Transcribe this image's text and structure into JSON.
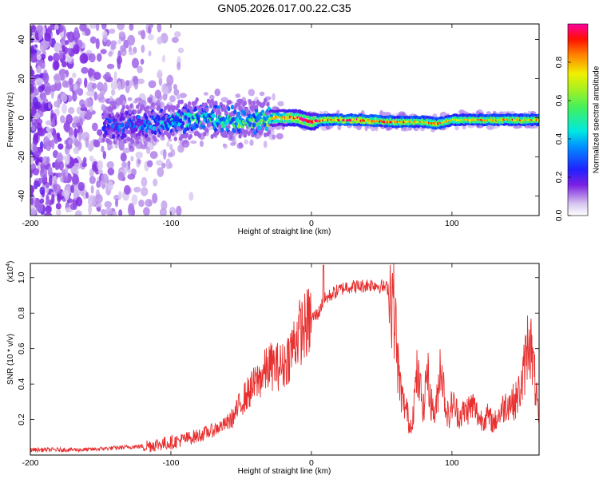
{
  "title": "GN05.2026.017.00.22.C35",
  "chart_data": [
    {
      "type": "heatmap",
      "title": "GN05.2026.017.00.22.C35",
      "xlabel": "Height of straight line (km)",
      "ylabel": "Frequency (Hz)",
      "xlim": [
        -200,
        162
      ],
      "ylim": [
        -50,
        48
      ],
      "x_ticks": [
        -200,
        -100,
        0,
        100
      ],
      "x_tick_labels": [
        "-200",
        "-100",
        "0",
        "100"
      ],
      "y_ticks": [
        -40,
        -20,
        0,
        20,
        40
      ],
      "y_tick_labels": [
        "-40",
        "-20",
        "0",
        "20",
        "40"
      ],
      "colorbar": {
        "label": "Normalized spectral amplitude",
        "range": [
          0,
          1
        ],
        "ticks": [
          0.0,
          0.2,
          0.4,
          0.6,
          0.8
        ],
        "tick_labels": [
          "0.0",
          "0.2",
          "0.4",
          "0.6",
          "0.8"
        ],
        "colormap": "purple-blue-cyan-green-yellow-red-magenta"
      },
      "ridge": {
        "description_values": "dominant frequency vs height",
        "x": [
          -145,
          -120,
          -100,
          -80,
          -60,
          -40,
          -25,
          -10,
          0,
          10,
          30,
          60,
          80,
          90,
          100,
          110,
          130,
          162
        ],
        "frequency": [
          -4,
          -3,
          -2,
          0,
          -1,
          -1,
          0,
          0,
          -2,
          -1,
          -1,
          -2,
          -2,
          -3,
          -1,
          -1,
          -1,
          -1
        ],
        "amplitude": [
          0.3,
          0.35,
          0.45,
          0.5,
          0.55,
          0.55,
          0.75,
          0.95,
          0.9,
          0.85,
          0.9,
          0.85,
          0.8,
          0.9,
          0.7,
          0.75,
          0.85,
          0.8
        ]
      },
      "noise_region_x": [
        -200,
        -110
      ]
    },
    {
      "type": "line",
      "xlabel": "Height of straight line (km)",
      "ylabel": "SNR (10 * v/v)",
      "y_multiplier_label": "(x10",
      "y_multiplier_exp": "4",
      "y_multiplier_close": ")",
      "xlim": [
        -200,
        162
      ],
      "ylim": [
        0,
        1.08
      ],
      "x_ticks": [
        -200,
        -100,
        0,
        100
      ],
      "x_tick_labels": [
        "-200",
        "-100",
        "0",
        "100"
      ],
      "y_ticks": [
        0.2,
        0.4,
        0.6,
        0.8,
        1.0
      ],
      "y_tick_labels": [
        "0.2",
        "0.4",
        "0.6",
        "0.8",
        "1.0"
      ],
      "series": [
        {
          "name": "SNR",
          "color": "#e83030",
          "x": [
            -200,
            -180,
            -160,
            -140,
            -120,
            -110,
            -100,
            -90,
            -80,
            -70,
            -60,
            -55,
            -50,
            -45,
            -40,
            -35,
            -30,
            -25,
            -20,
            -15,
            -10,
            -5,
            0,
            5,
            8,
            10,
            15,
            20,
            25,
            30,
            35,
            40,
            45,
            50,
            55,
            58,
            60,
            62,
            65,
            68,
            70,
            72,
            75,
            78,
            80,
            82,
            85,
            88,
            90,
            92,
            95,
            98,
            100,
            105,
            110,
            115,
            120,
            125,
            130,
            135,
            140,
            145,
            150,
            155,
            157,
            160,
            162
          ],
          "y": [
            0.03,
            0.03,
            0.03,
            0.04,
            0.05,
            0.06,
            0.07,
            0.09,
            0.11,
            0.14,
            0.18,
            0.22,
            0.3,
            0.35,
            0.4,
            0.45,
            0.5,
            0.5,
            0.5,
            0.58,
            0.68,
            0.72,
            0.77,
            0.8,
            0.86,
            0.88,
            0.91,
            0.93,
            0.95,
            0.95,
            0.95,
            0.96,
            0.96,
            0.95,
            0.94,
            0.9,
            0.7,
            0.45,
            0.3,
            0.25,
            0.15,
            0.22,
            0.45,
            0.35,
            0.25,
            0.5,
            0.3,
            0.22,
            0.35,
            0.55,
            0.3,
            0.2,
            0.3,
            0.22,
            0.25,
            0.28,
            0.2,
            0.22,
            0.18,
            0.25,
            0.3,
            0.3,
            0.4,
            0.7,
            0.55,
            0.35,
            0.15
          ]
        }
      ]
    }
  ]
}
